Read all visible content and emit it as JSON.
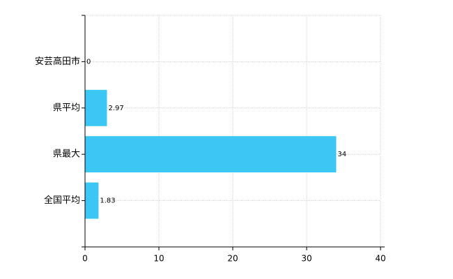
{
  "chart_data": {
    "type": "bar",
    "orientation": "horizontal",
    "categories": [
      "安芸高田市",
      "県平均",
      "県最大",
      "全国平均"
    ],
    "values": [
      0,
      2.97,
      34,
      1.83
    ],
    "color": "#3cc6f4",
    "xlim": [
      0,
      40
    ],
    "xticks": [
      0,
      10,
      20,
      30,
      40
    ],
    "grid": true
  }
}
